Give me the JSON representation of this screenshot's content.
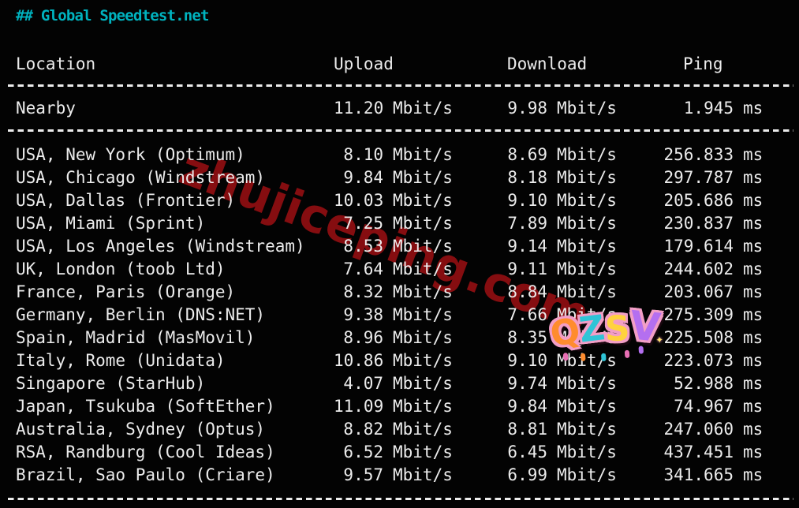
{
  "colors": {
    "background": "#030303",
    "text": "#ececec",
    "title_accent": "#00b3bf",
    "watermark_red": "#8c0e11"
  },
  "terminal": {
    "title": "## Global Speedtest.net",
    "columns": {
      "location": "Location",
      "upload": "Upload",
      "download": "Download",
      "ping": "Ping"
    },
    "units": {
      "speed": "Mbit/s",
      "ping": "ms"
    },
    "nearby": {
      "location": "Nearby",
      "upload": "11.20",
      "download": "9.98",
      "ping": "1.945"
    },
    "rows": [
      {
        "location": "USA, New York (Optimum)",
        "upload": "8.10",
        "download": "8.69",
        "ping": "256.833"
      },
      {
        "location": "USA, Chicago (Windstream)",
        "upload": "9.84",
        "download": "8.18",
        "ping": "297.787"
      },
      {
        "location": "USA, Dallas (Frontier)",
        "upload": "10.03",
        "download": "9.10",
        "ping": "205.686"
      },
      {
        "location": "USA, Miami (Sprint)",
        "upload": "7.25",
        "download": "7.89",
        "ping": "230.837"
      },
      {
        "location": "USA, Los Angeles (Windstream)",
        "upload": "8.53",
        "download": "9.14",
        "ping": "179.614"
      },
      {
        "location": "UK, London (toob Ltd)",
        "upload": "7.64",
        "download": "9.11",
        "ping": "244.602"
      },
      {
        "location": "France, Paris (Orange)",
        "upload": "8.32",
        "download": "8.84",
        "ping": "203.067"
      },
      {
        "location": "Germany, Berlin (DNS:NET)",
        "upload": "9.38",
        "download": "7.66",
        "ping": "275.309"
      },
      {
        "location": "Spain, Madrid (MasMovil)",
        "upload": "8.96",
        "download": "8.35",
        "ping": "225.508"
      },
      {
        "location": "Italy, Rome (Unidata)",
        "upload": "10.86",
        "download": "9.10",
        "ping": "223.073"
      },
      {
        "location": "Singapore (StarHub)",
        "upload": "4.07",
        "download": "9.74",
        "ping": "52.988"
      },
      {
        "location": "Japan, Tsukuba (SoftEther)",
        "upload": "11.09",
        "download": "9.84",
        "ping": "74.967"
      },
      {
        "location": "Australia, Sydney (Optus)",
        "upload": "8.82",
        "download": "8.81",
        "ping": "247.060"
      },
      {
        "location": "RSA, Randburg (Cool Ideas)",
        "upload": "6.52",
        "download": "6.45",
        "ping": "437.451"
      },
      {
        "location": "Brazil, Sao Paulo (Criare)",
        "upload": "9.57",
        "download": "6.99",
        "ping": "341.665"
      }
    ]
  },
  "watermark": {
    "text": "zhujiceping.com"
  },
  "sticker": {
    "text": "QZSV",
    "letters": [
      {
        "ch": "Q",
        "color": "#ff8c2e"
      },
      {
        "ch": "Z",
        "color": "#2ec4d6"
      },
      {
        "ch": "S",
        "color": "#ffd23e"
      },
      {
        "ch": "V",
        "color": "#b46ff0"
      }
    ],
    "sparkle": "✦"
  }
}
